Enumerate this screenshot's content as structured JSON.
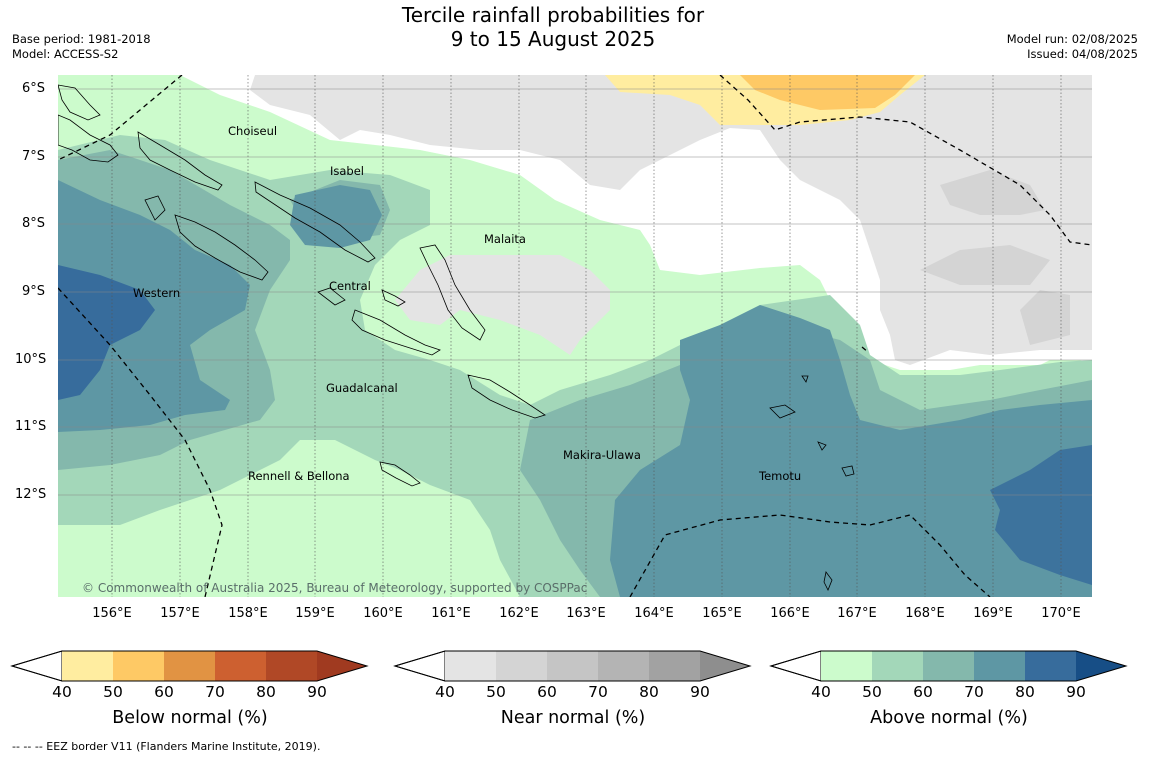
{
  "title": {
    "line1": "Tercile rainfall probabilities for",
    "line2": "9 to 15 August 2025"
  },
  "meta_left": {
    "base_period": "Base period: 1981-2018",
    "model": "Model: ACCESS-S2"
  },
  "meta_right": {
    "model_run": "Model run: 02/08/2025",
    "issued": "Issued: 04/08/2025"
  },
  "latitudes": [
    "6°S",
    "7°S",
    "8°S",
    "9°S",
    "10°S",
    "11°S",
    "12°S"
  ],
  "longitudes": [
    "156°E",
    "157°E",
    "158°E",
    "159°E",
    "160°E",
    "161°E",
    "162°E",
    "163°E",
    "164°E",
    "165°E",
    "166°E",
    "167°E",
    "168°E",
    "169°E",
    "170°E"
  ],
  "places": {
    "choiseul": "Choiseul",
    "isabel": "Isabel",
    "malaita": "Malaita",
    "western": "Western",
    "central": "Central",
    "guadalcanal": "Guadalcanal",
    "rennell": "Rennell & Bellona",
    "makira": "Makira-Ulawa",
    "temotu": "Temotu"
  },
  "copyright": "© Commonwealth of Australia 2025, Bureau of Meteorology, supported by COSPPac",
  "colorbars": [
    {
      "title": "Below normal (%)",
      "ticks": [
        "40",
        "50",
        "60",
        "70",
        "80",
        "90"
      ],
      "colors": [
        "#ffeda0",
        "#fec965",
        "#e19343",
        "#cd6030",
        "#b04826"
      ],
      "extend": "#a03a20"
    },
    {
      "title": "Near normal (%)",
      "ticks": [
        "40",
        "50",
        "60",
        "70",
        "80",
        "90"
      ],
      "colors": [
        "#e4e4e4",
        "#d4d4d4",
        "#c5c5c5",
        "#b4b4b4",
        "#a2a2a2"
      ],
      "extend": "#8e8e8e"
    },
    {
      "title": "Above normal (%)",
      "ticks": [
        "40",
        "50",
        "60",
        "70",
        "80",
        "90"
      ],
      "colors": [
        "#ccfbcc",
        "#a3d7b9",
        "#84b8ac",
        "#5e97a4",
        "#376c9c"
      ],
      "extend": "#174e86"
    }
  ],
  "footer": "--  --  -- EEZ border V11 (Flanders Marine Institute, 2019)."
}
